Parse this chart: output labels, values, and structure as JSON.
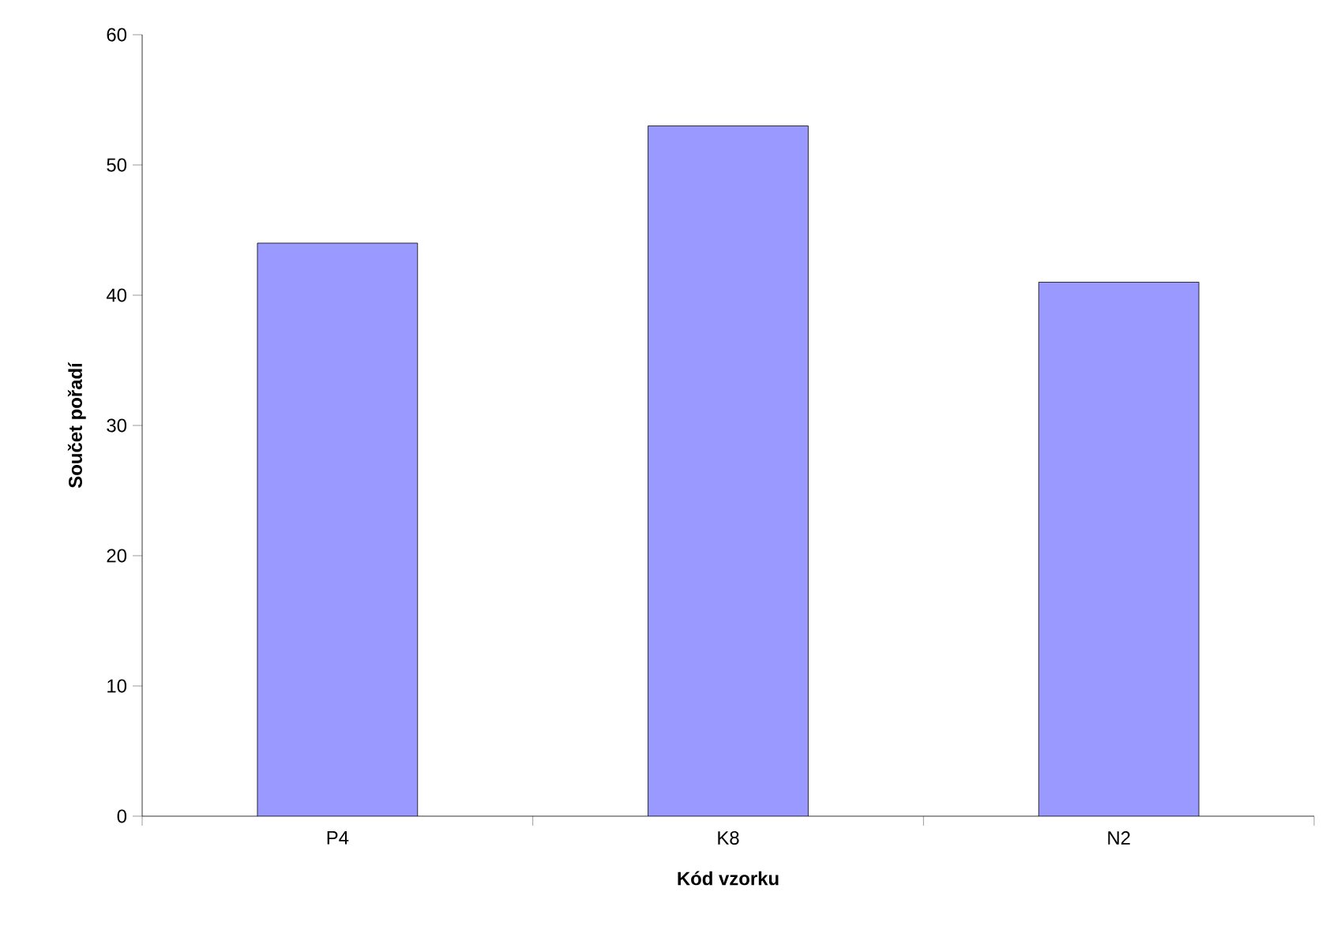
{
  "chart_data": {
    "type": "bar",
    "xlabel": "Kód vzorku",
    "ylabel": "Součet pořadí",
    "categories": [
      "P4",
      "K8",
      "N2"
    ],
    "values": [
      44,
      53,
      41
    ],
    "color": "#9999ff",
    "ylim": [
      0,
      60
    ],
    "yticks": [
      0,
      10,
      20,
      30,
      40,
      50,
      60
    ],
    "grid": false
  }
}
